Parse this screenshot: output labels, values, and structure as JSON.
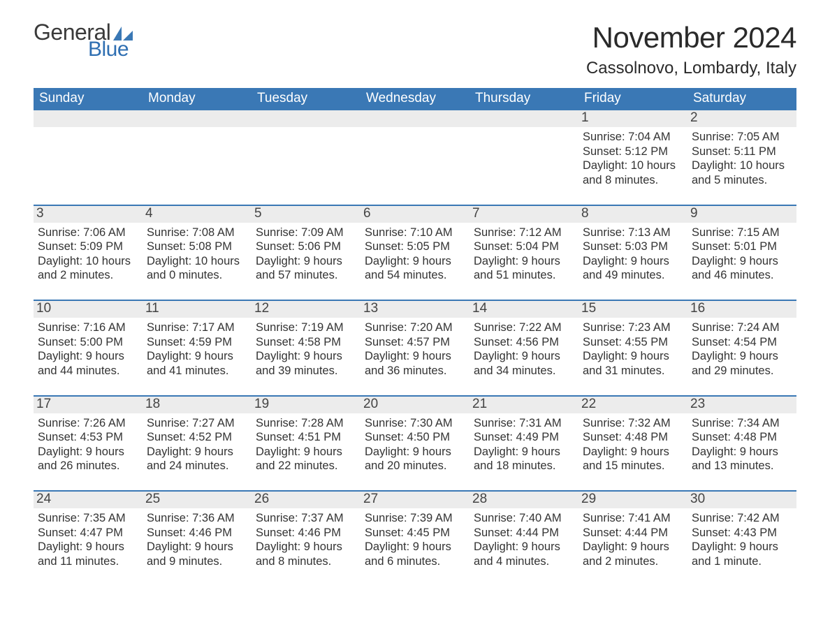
{
  "brand": {
    "word1": "General",
    "word2": "Blue",
    "accent_color": "#3a78b5"
  },
  "title": "November 2024",
  "location": "Cassolnovo, Lombardy, Italy",
  "columns": [
    "Sunday",
    "Monday",
    "Tuesday",
    "Wednesday",
    "Thursday",
    "Friday",
    "Saturday"
  ],
  "colors": {
    "header_bg": "#3a78b5",
    "header_text": "#ffffff",
    "daynum_bg": "#ececec",
    "rule": "#3a78b5",
    "text": "#333333",
    "background": "#ffffff"
  },
  "typography": {
    "title_fontsize_pt": 32,
    "location_fontsize_pt": 18,
    "dow_fontsize_pt": 14,
    "daynum_fontsize_pt": 14,
    "body_fontsize_pt": 12
  },
  "calendar": {
    "type": "month-grid",
    "first_day_column_index": 5,
    "weeks": [
      [
        null,
        null,
        null,
        null,
        null,
        {
          "n": 1,
          "sunrise": "7:04 AM",
          "sunset": "5:12 PM",
          "daylight": "10 hours and 8 minutes."
        },
        {
          "n": 2,
          "sunrise": "7:05 AM",
          "sunset": "5:11 PM",
          "daylight": "10 hours and 5 minutes."
        }
      ],
      [
        {
          "n": 3,
          "sunrise": "7:06 AM",
          "sunset": "5:09 PM",
          "daylight": "10 hours and 2 minutes."
        },
        {
          "n": 4,
          "sunrise": "7:08 AM",
          "sunset": "5:08 PM",
          "daylight": "10 hours and 0 minutes."
        },
        {
          "n": 5,
          "sunrise": "7:09 AM",
          "sunset": "5:06 PM",
          "daylight": "9 hours and 57 minutes."
        },
        {
          "n": 6,
          "sunrise": "7:10 AM",
          "sunset": "5:05 PM",
          "daylight": "9 hours and 54 minutes."
        },
        {
          "n": 7,
          "sunrise": "7:12 AM",
          "sunset": "5:04 PM",
          "daylight": "9 hours and 51 minutes."
        },
        {
          "n": 8,
          "sunrise": "7:13 AM",
          "sunset": "5:03 PM",
          "daylight": "9 hours and 49 minutes."
        },
        {
          "n": 9,
          "sunrise": "7:15 AM",
          "sunset": "5:01 PM",
          "daylight": "9 hours and 46 minutes."
        }
      ],
      [
        {
          "n": 10,
          "sunrise": "7:16 AM",
          "sunset": "5:00 PM",
          "daylight": "9 hours and 44 minutes."
        },
        {
          "n": 11,
          "sunrise": "7:17 AM",
          "sunset": "4:59 PM",
          "daylight": "9 hours and 41 minutes."
        },
        {
          "n": 12,
          "sunrise": "7:19 AM",
          "sunset": "4:58 PM",
          "daylight": "9 hours and 39 minutes."
        },
        {
          "n": 13,
          "sunrise": "7:20 AM",
          "sunset": "4:57 PM",
          "daylight": "9 hours and 36 minutes."
        },
        {
          "n": 14,
          "sunrise": "7:22 AM",
          "sunset": "4:56 PM",
          "daylight": "9 hours and 34 minutes."
        },
        {
          "n": 15,
          "sunrise": "7:23 AM",
          "sunset": "4:55 PM",
          "daylight": "9 hours and 31 minutes."
        },
        {
          "n": 16,
          "sunrise": "7:24 AM",
          "sunset": "4:54 PM",
          "daylight": "9 hours and 29 minutes."
        }
      ],
      [
        {
          "n": 17,
          "sunrise": "7:26 AM",
          "sunset": "4:53 PM",
          "daylight": "9 hours and 26 minutes."
        },
        {
          "n": 18,
          "sunrise": "7:27 AM",
          "sunset": "4:52 PM",
          "daylight": "9 hours and 24 minutes."
        },
        {
          "n": 19,
          "sunrise": "7:28 AM",
          "sunset": "4:51 PM",
          "daylight": "9 hours and 22 minutes."
        },
        {
          "n": 20,
          "sunrise": "7:30 AM",
          "sunset": "4:50 PM",
          "daylight": "9 hours and 20 minutes."
        },
        {
          "n": 21,
          "sunrise": "7:31 AM",
          "sunset": "4:49 PM",
          "daylight": "9 hours and 18 minutes."
        },
        {
          "n": 22,
          "sunrise": "7:32 AM",
          "sunset": "4:48 PM",
          "daylight": "9 hours and 15 minutes."
        },
        {
          "n": 23,
          "sunrise": "7:34 AM",
          "sunset": "4:48 PM",
          "daylight": "9 hours and 13 minutes."
        }
      ],
      [
        {
          "n": 24,
          "sunrise": "7:35 AM",
          "sunset": "4:47 PM",
          "daylight": "9 hours and 11 minutes."
        },
        {
          "n": 25,
          "sunrise": "7:36 AM",
          "sunset": "4:46 PM",
          "daylight": "9 hours and 9 minutes."
        },
        {
          "n": 26,
          "sunrise": "7:37 AM",
          "sunset": "4:46 PM",
          "daylight": "9 hours and 8 minutes."
        },
        {
          "n": 27,
          "sunrise": "7:39 AM",
          "sunset": "4:45 PM",
          "daylight": "9 hours and 6 minutes."
        },
        {
          "n": 28,
          "sunrise": "7:40 AM",
          "sunset": "4:44 PM",
          "daylight": "9 hours and 4 minutes."
        },
        {
          "n": 29,
          "sunrise": "7:41 AM",
          "sunset": "4:44 PM",
          "daylight": "9 hours and 2 minutes."
        },
        {
          "n": 30,
          "sunrise": "7:42 AM",
          "sunset": "4:43 PM",
          "daylight": "9 hours and 1 minute."
        }
      ]
    ]
  },
  "labels": {
    "sunrise": "Sunrise:",
    "sunset": "Sunset:",
    "daylight": "Daylight:"
  }
}
